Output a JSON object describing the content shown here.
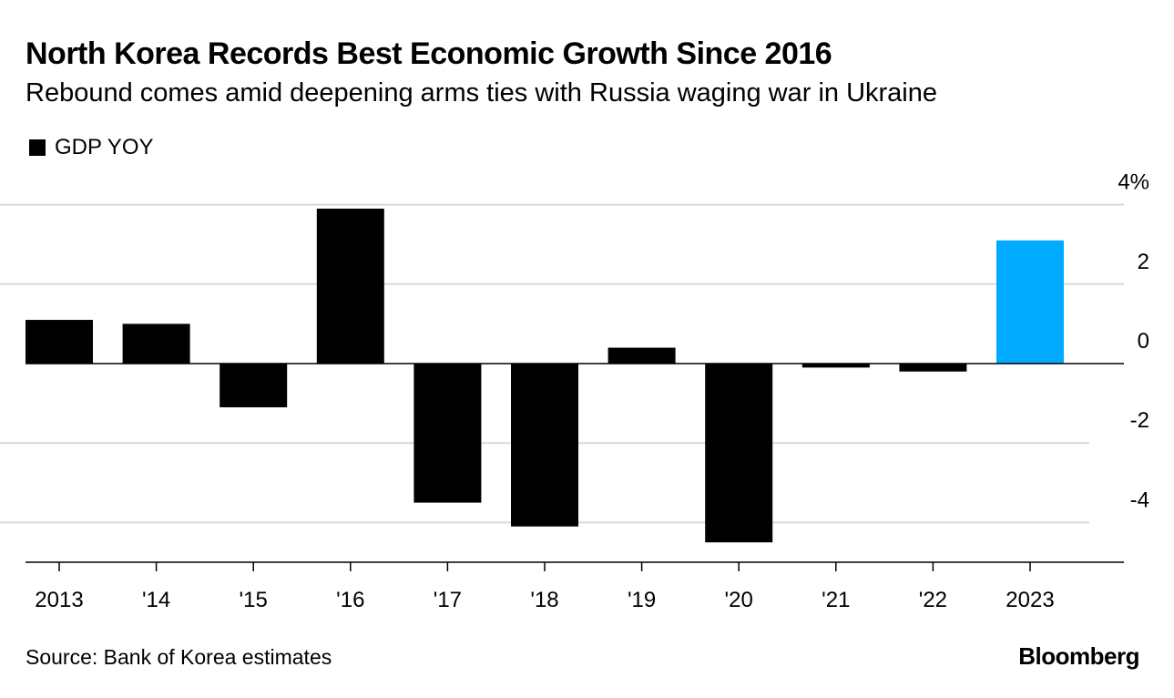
{
  "title": "North Korea Records Best Economic Growth Since 2016",
  "subtitle": "Rebound comes amid deepening arms ties with Russia waging war in Ukraine",
  "legend": {
    "label": "GDP YOY",
    "color": "#000000"
  },
  "source": "Source: Bank of Korea estimates",
  "brand": "Bloomberg",
  "colors": {
    "bar": "#000000",
    "highlight": "#00aaff",
    "grid": "#d9d9d9",
    "axis": "#000000"
  },
  "chart_data": {
    "type": "bar",
    "categories": [
      "2013",
      "'14",
      "'15",
      "'16",
      "'17",
      "'18",
      "'19",
      "'20",
      "'21",
      "'22",
      "2023"
    ],
    "series": [
      {
        "name": "GDP YOY",
        "values": [
          1.1,
          1.0,
          -1.1,
          3.9,
          -3.5,
          -4.1,
          0.4,
          -4.5,
          -0.1,
          -0.2,
          3.1
        ]
      }
    ],
    "highlight_index": 10,
    "y_ticks": [
      "4%",
      "2",
      "0",
      "-2",
      "-4"
    ],
    "y_tick_values": [
      4,
      2,
      0,
      -2,
      -4
    ],
    "ylim": [
      -5,
      4
    ],
    "y_axis_side": "right",
    "grid": true,
    "legend_position": "top-left"
  }
}
